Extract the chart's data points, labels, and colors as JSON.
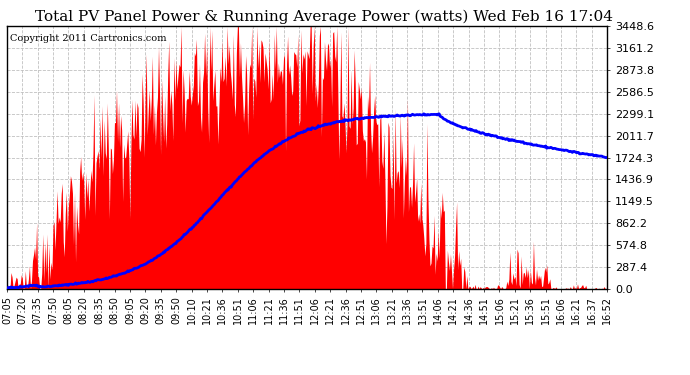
{
  "title": "Total PV Panel Power & Running Average Power (watts) Wed Feb 16 17:04",
  "copyright": "Copyright 2011 Cartronics.com",
  "ymax": 3448.6,
  "ymin": 0.0,
  "yticks": [
    0.0,
    287.4,
    574.8,
    862.2,
    1149.5,
    1436.9,
    1724.3,
    2011.7,
    2299.1,
    2586.5,
    2873.8,
    3161.2,
    3448.6
  ],
  "xtick_labels": [
    "07:05",
    "07:20",
    "07:35",
    "07:50",
    "08:05",
    "08:20",
    "08:35",
    "08:50",
    "09:05",
    "09:20",
    "09:35",
    "09:50",
    "10:10",
    "10:21",
    "10:36",
    "10:51",
    "11:06",
    "11:21",
    "11:36",
    "11:51",
    "12:06",
    "12:21",
    "12:36",
    "12:51",
    "13:06",
    "13:21",
    "13:36",
    "13:51",
    "14:06",
    "14:21",
    "14:36",
    "14:51",
    "15:06",
    "15:21",
    "15:36",
    "15:51",
    "16:06",
    "16:21",
    "16:37",
    "16:52"
  ],
  "bar_color": "#FF0000",
  "line_color": "#0000FF",
  "background_color": "#FFFFFF",
  "plot_bg_color": "#FFFFFF",
  "grid_color": "#C0C0C0",
  "title_fontsize": 11,
  "copyright_fontsize": 7,
  "tick_fontsize": 7,
  "ytick_fontsize": 8
}
